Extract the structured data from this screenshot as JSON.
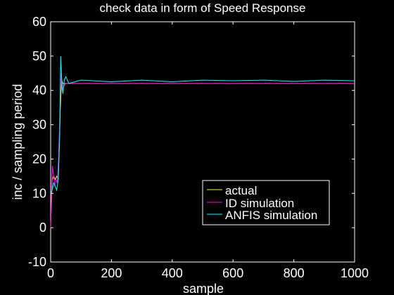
{
  "chart_data": {
    "type": "line",
    "title": "check data in form of Speed Response",
    "xlabel": "sample",
    "ylabel": "inc / sampling period",
    "xlim": [
      0,
      1000
    ],
    "ylim": [
      -10,
      60
    ],
    "xticks": [
      0,
      200,
      400,
      600,
      800,
      1000
    ],
    "yticks": [
      -10,
      0,
      10,
      20,
      30,
      40,
      50,
      60
    ],
    "grid": false,
    "legend_position": "lower-right",
    "series": [
      {
        "name": "actual",
        "color": "#ffff00",
        "x": [
          0,
          5,
          10,
          15,
          20,
          25,
          28,
          32,
          36,
          40,
          60,
          100,
          200,
          400,
          600,
          800,
          1000
        ],
        "y": [
          0,
          14,
          15,
          14,
          15,
          14,
          22,
          35,
          43,
          42,
          42,
          42,
          42,
          42,
          42,
          42,
          42
        ]
      },
      {
        "name": "ID simulation",
        "color": "#ff00ff",
        "x": [
          0,
          3,
          6,
          10,
          14,
          18,
          22,
          26,
          30,
          34,
          38,
          42,
          50,
          100,
          200,
          400,
          600,
          800,
          1000
        ],
        "y": [
          0,
          10,
          18,
          15,
          12,
          14,
          13,
          20,
          32,
          45,
          40,
          41,
          42,
          42,
          42,
          42,
          42,
          42,
          42
        ]
      },
      {
        "name": "ANFIS simulation",
        "color": "#00ffff",
        "x": [
          0,
          5,
          10,
          15,
          20,
          25,
          30,
          33,
          36,
          40,
          45,
          50,
          60,
          100,
          200,
          300,
          400,
          500,
          600,
          700,
          800,
          900,
          1000
        ],
        "y": [
          10,
          11,
          13,
          12,
          11,
          14,
          28,
          50,
          44,
          39,
          43,
          44,
          42,
          43,
          42.5,
          43,
          42.5,
          43,
          42.8,
          43,
          42.6,
          43,
          42.8
        ]
      }
    ]
  }
}
